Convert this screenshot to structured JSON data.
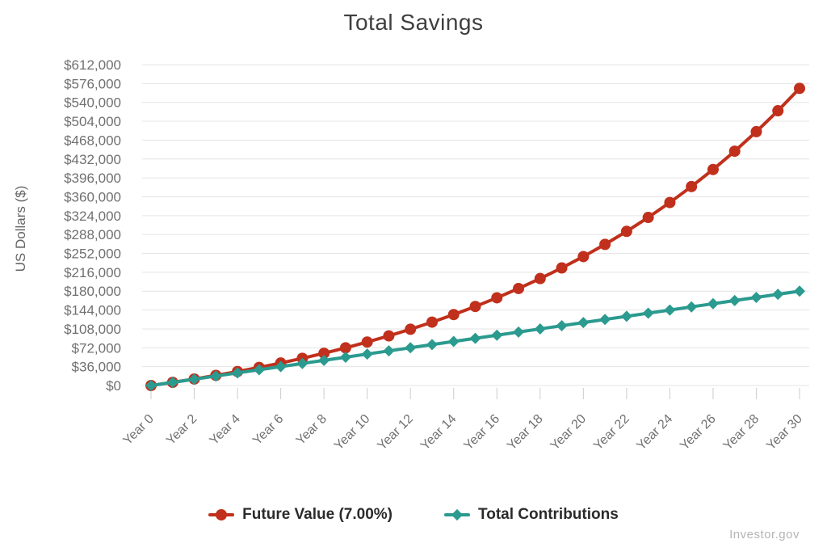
{
  "watermark": "Investor.gov",
  "chart_data": {
    "type": "line",
    "title": "Total Savings",
    "xlabel": "",
    "ylabel": "US Dollars ($)",
    "x": [
      0,
      1,
      2,
      3,
      4,
      5,
      6,
      7,
      8,
      9,
      10,
      11,
      12,
      13,
      14,
      15,
      16,
      17,
      18,
      19,
      20,
      21,
      22,
      23,
      24,
      25,
      26,
      27,
      28,
      29,
      30
    ],
    "x_tick_labels": [
      "Year 0",
      "Year 2",
      "Year 4",
      "Year 6",
      "Year 8",
      "Year 10",
      "Year 12",
      "Year 14",
      "Year 16",
      "Year 18",
      "Year 20",
      "Year 22",
      "Year 24",
      "Year 26",
      "Year 28",
      "Year 30"
    ],
    "x_tick_years": [
      0,
      2,
      4,
      6,
      8,
      10,
      12,
      14,
      16,
      18,
      20,
      22,
      24,
      26,
      28,
      30
    ],
    "ylim": [
      0,
      612000
    ],
    "y_tick_step": 36000,
    "y_tick_values": [
      0,
      36000,
      72000,
      108000,
      144000,
      180000,
      216000,
      252000,
      288000,
      324000,
      360000,
      396000,
      432000,
      468000,
      504000,
      540000,
      576000,
      612000
    ],
    "y_tick_labels": [
      "$0",
      "$36,000",
      "$72,000",
      "$108,000",
      "$144,000",
      "$180,000",
      "$216,000",
      "$252,000",
      "$288,000",
      "$324,000",
      "$360,000",
      "$396,000",
      "$432,000",
      "$468,000",
      "$504,000",
      "$540,000",
      "$576,000",
      "$612,000"
    ],
    "grid": "horizontal",
    "legend_position": "bottom",
    "series": [
      {
        "name": "Future Value (7.00%)",
        "color": "#c0301c",
        "marker": "circle",
        "values": [
          0,
          6000,
          12420,
          19289,
          26640,
          34504,
          42920,
          51924,
          61559,
          71868,
          82899,
          94702,
          107331,
          120844,
          135303,
          150774,
          167328,
          185041,
          203994,
          224274,
          245973,
          269191,
          294034,
          320617,
          349060,
          379494,
          412059,
          446903,
          484186,
          524079,
          566765
        ]
      },
      {
        "name": "Total Contributions",
        "color": "#2b9a8f",
        "marker": "diamond",
        "values": [
          0,
          6000,
          12000,
          18000,
          24000,
          30000,
          36000,
          42000,
          48000,
          54000,
          60000,
          66000,
          72000,
          78000,
          84000,
          90000,
          96000,
          102000,
          108000,
          114000,
          120000,
          126000,
          132000,
          138000,
          144000,
          150000,
          156000,
          162000,
          168000,
          174000,
          180000
        ]
      }
    ]
  }
}
